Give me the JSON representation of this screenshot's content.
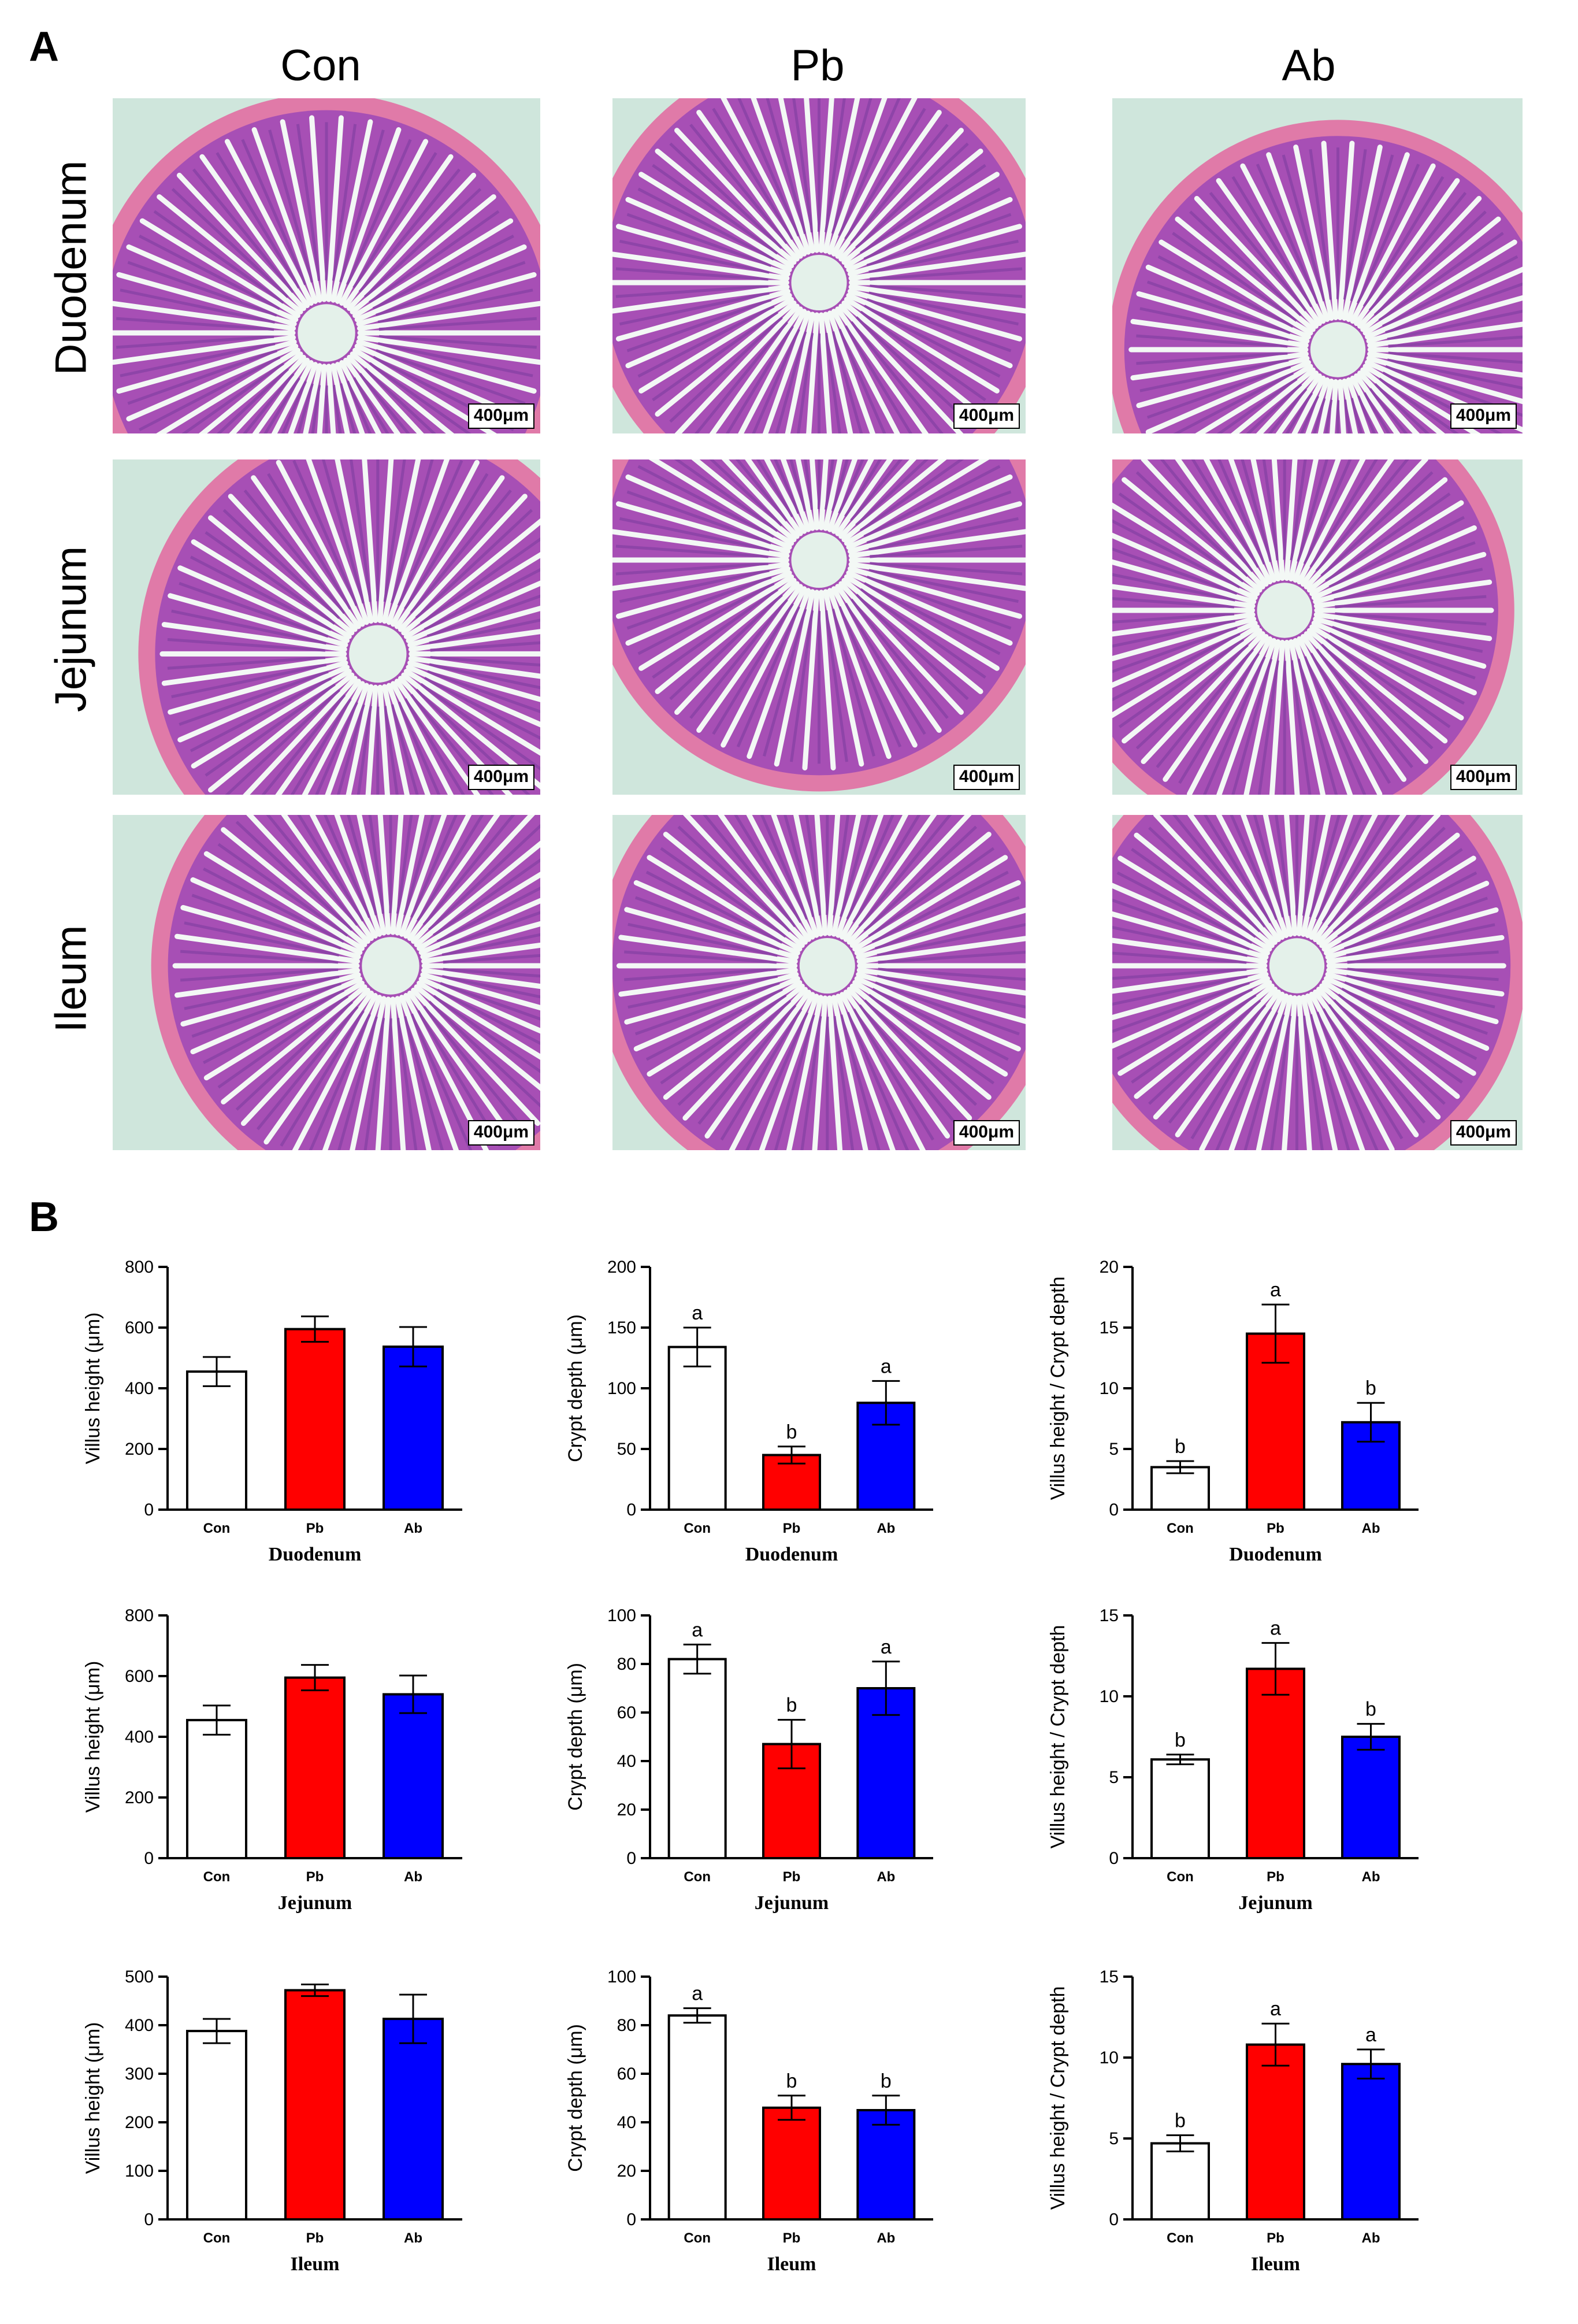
{
  "panel_a": {
    "label": "A",
    "columns": [
      "Con",
      "Pb",
      "Ab"
    ],
    "rows": [
      "Duodenum",
      "Jejunum",
      "Ileum"
    ],
    "scale_bar": "400μm",
    "colors": {
      "lumen": "#cfe6dc",
      "muscle": "#e07aa8",
      "villi": "#8e44a8"
    }
  },
  "panel_b": {
    "label": "B"
  },
  "chart_data": [
    {
      "type": "bar",
      "categories": [
        "Con",
        "Pb",
        "Ab"
      ],
      "values": [
        455,
        595,
        537
      ],
      "errors": [
        48,
        42,
        65
      ],
      "significance": [
        "",
        "",
        ""
      ],
      "ylabel": "Villus height (μm)",
      "xlabel": "Duodenum",
      "ylim": [
        0,
        800
      ],
      "yticks": [
        0,
        200,
        400,
        600,
        800
      ],
      "colors": [
        "#ffffff",
        "#ff0000",
        "#0000ff"
      ]
    },
    {
      "type": "bar",
      "categories": [
        "Con",
        "Pb",
        "Ab"
      ],
      "values": [
        134,
        45,
        88
      ],
      "errors": [
        16,
        7,
        18
      ],
      "significance": [
        "a",
        "b",
        "a"
      ],
      "ylabel": "Crypt depth (μm)",
      "xlabel": "Duodenum",
      "ylim": [
        0,
        200
      ],
      "yticks": [
        0,
        50,
        100,
        150,
        200
      ],
      "colors": [
        "#ffffff",
        "#ff0000",
        "#0000ff"
      ]
    },
    {
      "type": "bar",
      "categories": [
        "Con",
        "Pb",
        "Ab"
      ],
      "values": [
        3.5,
        14.5,
        7.2
      ],
      "errors": [
        0.5,
        2.4,
        1.6
      ],
      "significance": [
        "b",
        "a",
        "b"
      ],
      "ylabel": "Villus height / Crypt depth",
      "xlabel": "Duodenum",
      "ylim": [
        0,
        20
      ],
      "yticks": [
        0,
        5,
        10,
        15,
        20
      ],
      "colors": [
        "#ffffff",
        "#ff0000",
        "#0000ff"
      ]
    },
    {
      "type": "bar",
      "categories": [
        "Con",
        "Pb",
        "Ab"
      ],
      "values": [
        455,
        595,
        540
      ],
      "errors": [
        48,
        42,
        62
      ],
      "significance": [
        "",
        "",
        ""
      ],
      "ylabel": "Villus height (μm)",
      "xlabel": "Jejunum",
      "ylim": [
        0,
        800
      ],
      "yticks": [
        0,
        200,
        400,
        600,
        800
      ],
      "colors": [
        "#ffffff",
        "#ff0000",
        "#0000ff"
      ]
    },
    {
      "type": "bar",
      "categories": [
        "Con",
        "Pb",
        "Ab"
      ],
      "values": [
        82,
        47,
        70
      ],
      "errors": [
        6,
        10,
        11
      ],
      "significance": [
        "a",
        "b",
        "a"
      ],
      "ylabel": "Crypt depth (μm)",
      "xlabel": "Jejunum",
      "ylim": [
        0,
        100
      ],
      "yticks": [
        0,
        20,
        40,
        60,
        80,
        100
      ],
      "colors": [
        "#ffffff",
        "#ff0000",
        "#0000ff"
      ]
    },
    {
      "type": "bar",
      "categories": [
        "Con",
        "Pb",
        "Ab"
      ],
      "values": [
        6.1,
        11.7,
        7.5
      ],
      "errors": [
        0.3,
        1.6,
        0.8
      ],
      "significance": [
        "b",
        "a",
        "b"
      ],
      "ylabel": "Villus height / Crypt depth",
      "xlabel": "Jejunum",
      "ylim": [
        0,
        15
      ],
      "yticks": [
        0,
        5,
        10,
        15
      ],
      "colors": [
        "#ffffff",
        "#ff0000",
        "#0000ff"
      ]
    },
    {
      "type": "bar",
      "categories": [
        "Con",
        "Pb",
        "Ab"
      ],
      "values": [
        388,
        472,
        413
      ],
      "errors": [
        25,
        12,
        50
      ],
      "significance": [
        "",
        "",
        ""
      ],
      "ylabel": "Villus height (μm)",
      "xlabel": "Ileum",
      "ylim": [
        0,
        500
      ],
      "yticks": [
        0,
        100,
        200,
        300,
        400,
        500
      ],
      "colors": [
        "#ffffff",
        "#ff0000",
        "#0000ff"
      ]
    },
    {
      "type": "bar",
      "categories": [
        "Con",
        "Pb",
        "Ab"
      ],
      "values": [
        84,
        46,
        45
      ],
      "errors": [
        3,
        5,
        6
      ],
      "significance": [
        "a",
        "b",
        "b"
      ],
      "ylabel": "Crypt depth (μm)",
      "xlabel": "Ileum",
      "ylim": [
        0,
        100
      ],
      "yticks": [
        0,
        20,
        40,
        60,
        80,
        100
      ],
      "colors": [
        "#ffffff",
        "#ff0000",
        "#0000ff"
      ]
    },
    {
      "type": "bar",
      "categories": [
        "Con",
        "Pb",
        "Ab"
      ],
      "values": [
        4.7,
        10.8,
        9.6
      ],
      "errors": [
        0.5,
        1.3,
        0.9
      ],
      "significance": [
        "b",
        "a",
        "a"
      ],
      "ylabel": "Villus height / Crypt depth",
      "xlabel": "Ileum",
      "ylim": [
        0,
        15
      ],
      "yticks": [
        0,
        5,
        10,
        15
      ],
      "colors": [
        "#ffffff",
        "#ff0000",
        "#0000ff"
      ]
    }
  ]
}
